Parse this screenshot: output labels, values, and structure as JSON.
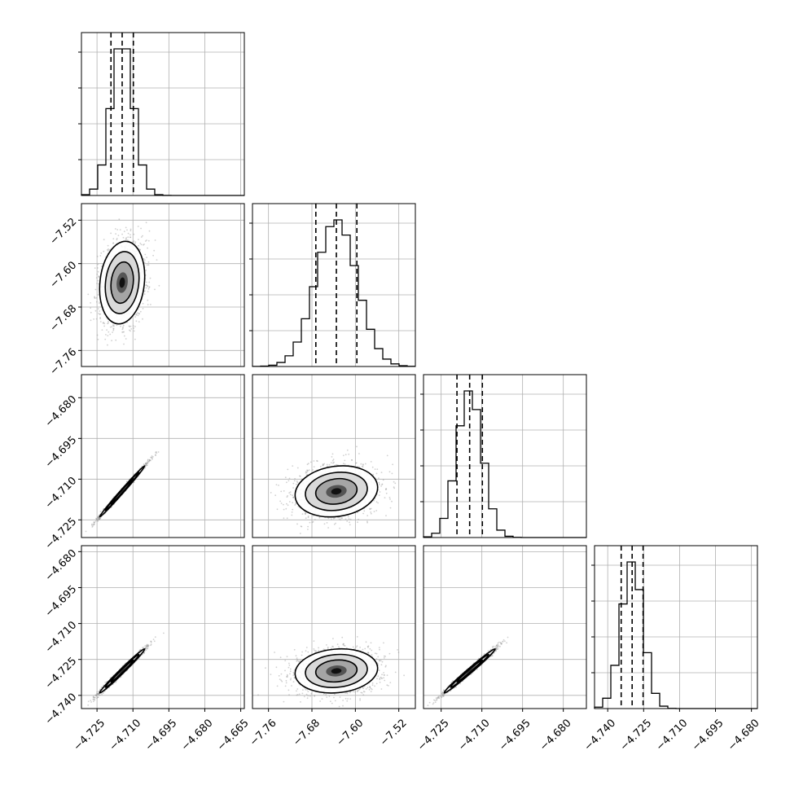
{
  "chart_data": {
    "type": "corner",
    "grid": true,
    "quantiles": [
      0.16,
      0.5,
      0.84
    ],
    "params": [
      {
        "mean": -4.7145,
        "sd": 0.0047
      },
      {
        "mean": -7.635,
        "sd": 0.038
      },
      {
        "mean": -4.7145,
        "sd": 0.0047
      },
      {
        "mean": -4.7298,
        "sd": 0.0046
      }
    ],
    "diag_ranges": [
      [
        -4.7315,
        -4.6635
      ],
      [
        -7.7895,
        -7.4895
      ],
      [
        -4.7315,
        -4.6715
      ],
      [
        -4.7455,
        -4.6775
      ]
    ],
    "row_y_ranges": [
      null,
      [
        -7.7895,
        -7.4895
      ],
      [
        -4.7315,
        -4.6715
      ],
      [
        -4.7455,
        -4.6775
      ]
    ],
    "col_x_ranges": [
      [
        -4.7315,
        -4.6635
      ],
      [
        -7.7895,
        -7.4895
      ],
      [
        -4.7315,
        -4.6715
      ],
      [
        -4.7455,
        -4.6775
      ]
    ],
    "ticks": [
      [
        "−4.725",
        "−4.710",
        "−4.695",
        "−4.680",
        "−4.665"
      ],
      [
        "−7.76",
        "−7.68",
        "−7.60",
        "−7.52"
      ],
      [
        "−4.725",
        "−4.710",
        "−4.695",
        "−4.680"
      ],
      [
        "−4.740",
        "−4.725",
        "−4.710",
        "−4.695",
        "−4.680"
      ]
    ],
    "tick_values": [
      [
        -4.725,
        -4.71,
        -4.695,
        -4.68,
        -4.665
      ],
      [
        -7.76,
        -7.68,
        -7.6,
        -7.52
      ],
      [
        -4.725,
        -4.71,
        -4.695,
        -4.68
      ],
      [
        -4.74,
        -4.725,
        -4.71,
        -4.695,
        -4.68
      ]
    ],
    "correlation": {
      "1,0": 0.15,
      "2,0": 0.995,
      "2,1": 0.15,
      "3,0": 0.99,
      "3,1": 0.12,
      "3,2": 0.99
    }
  }
}
